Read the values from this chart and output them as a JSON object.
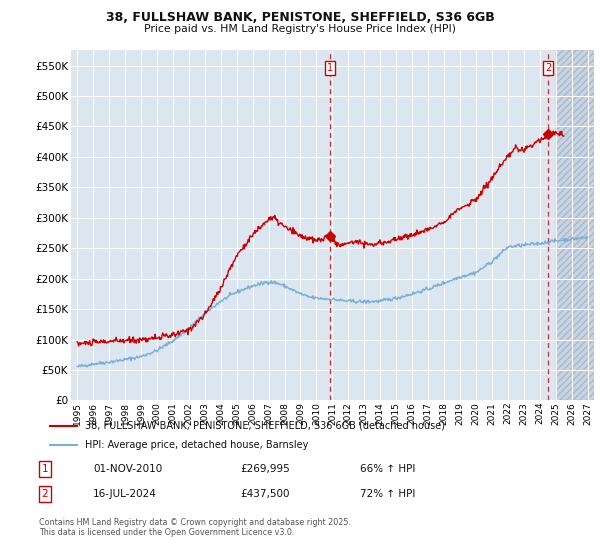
{
  "title": "38, FULLSHAW BANK, PENISTONE, SHEFFIELD, S36 6GB",
  "subtitle": "Price paid vs. HM Land Registry's House Price Index (HPI)",
  "background_color": "#ffffff",
  "plot_bg_color": "#dce6f1",
  "plot_bg_future": "#cdd8e8",
  "grid_color": "#ffffff",
  "red_color": "#cc0000",
  "blue_color": "#7bafd4",
  "ylim": [
    0,
    575000
  ],
  "yticks": [
    0,
    50000,
    100000,
    150000,
    200000,
    250000,
    300000,
    350000,
    400000,
    450000,
    500000,
    550000
  ],
  "legend_entries": [
    "38, FULLSHAW BANK, PENISTONE, SHEFFIELD, S36 6GB (detached house)",
    "HPI: Average price, detached house, Barnsley"
  ],
  "annotation1_label": "1",
  "annotation1_date": "01-NOV-2010",
  "annotation1_price": "£269,995",
  "annotation1_hpi": "66% ↑ HPI",
  "annotation2_label": "2",
  "annotation2_date": "16-JUL-2024",
  "annotation2_price": "£437,500",
  "annotation2_hpi": "72% ↑ HPI",
  "footer": "Contains HM Land Registry data © Crown copyright and database right 2025.\nThis data is licensed under the Open Government Licence v3.0.",
  "vline1_x": 2010.83,
  "vline2_x": 2024.54,
  "future_start": 2025.0,
  "xmin": 1994.6,
  "xmax": 2027.4
}
